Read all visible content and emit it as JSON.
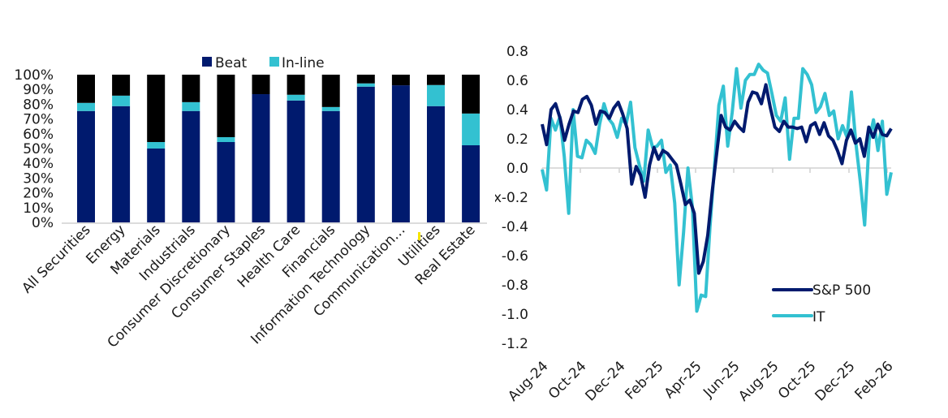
{
  "chart_data": [
    {
      "type": "bar",
      "stacked": true,
      "categories": [
        "All Securities",
        "Energy",
        "Materials",
        "Industrials",
        "Consumer Discretionary",
        "Consumer Staples",
        "Health Care",
        "Financials",
        "Information Technology",
        "Communication…",
        "Utilities",
        "Real Estate"
      ],
      "series": [
        {
          "name": "Beat",
          "color": "#001a6e",
          "values": [
            75.4,
            78.7,
            50.0,
            75.4,
            54.4,
            86.8,
            82.5,
            75.4,
            91.9,
            92.8,
            78.7,
            52.2
          ]
        },
        {
          "name": "In-line",
          "color": "#33c1d1",
          "values": [
            5.5,
            7.1,
            4.4,
            6.0,
            3.3,
            0.0,
            3.9,
            2.7,
            2.2,
            0.0,
            14.3,
            21.5
          ]
        },
        {
          "color": "#000000",
          "values": [
            19.1,
            14.2,
            45.6,
            18.6,
            42.3,
            13.2,
            13.6,
            21.9,
            5.9,
            7.2,
            7.0,
            26.3
          ]
        }
      ],
      "yticks": [
        "0%",
        "10%",
        "20%",
        "30%",
        "40%",
        "50%",
        "60%",
        "70%",
        "80%",
        "90%",
        "100%"
      ],
      "ylim": [
        0,
        100
      ],
      "legend": "top",
      "grid": false
    },
    {
      "type": "line",
      "ylabel": "x",
      "ylim": [
        -1.2,
        0.8
      ],
      "yticks": [
        "0.8",
        "0.6",
        "0.4",
        "0.2",
        "0.0",
        "-0.2",
        "-0.4",
        "-0.6",
        "-0.8",
        "-1.0",
        "-1.2"
      ],
      "xticks": [
        "Aug-24",
        "Oct-24",
        "Dec-24",
        "Feb-25",
        "Apr-25",
        "Jun-25",
        "Aug-25",
        "Oct-25",
        "Dec-25",
        "Feb-26"
      ],
      "legend": "bottom-right",
      "grid": false,
      "series": [
        {
          "name": "S&P 500",
          "color": "#001a6e",
          "values": [
            0.3,
            0.16,
            0.4,
            0.44,
            0.34,
            0.19,
            0.3,
            0.39,
            0.38,
            0.47,
            0.49,
            0.43,
            0.3,
            0.39,
            0.38,
            0.34,
            0.41,
            0.45,
            0.37,
            0.27,
            -0.11,
            0.01,
            -0.05,
            -0.2,
            0.02,
            0.14,
            0.06,
            0.12,
            0.1,
            0.06,
            0.02,
            -0.11,
            -0.25,
            -0.22,
            -0.31,
            -0.72,
            -0.64,
            -0.46,
            -0.16,
            0.1,
            0.36,
            0.28,
            0.26,
            0.32,
            0.28,
            0.25,
            0.45,
            0.52,
            0.51,
            0.44,
            0.57,
            0.41,
            0.28,
            0.25,
            0.32,
            0.28,
            0.28,
            0.27,
            0.28,
            0.18,
            0.29,
            0.31,
            0.23,
            0.31,
            0.22,
            0.19,
            0.12,
            0.03,
            0.19,
            0.26,
            0.17,
            0.2,
            0.08,
            0.28,
            0.21,
            0.3,
            0.23,
            0.22,
            0.27
          ]
        },
        {
          "name": "IT",
          "color": "#33c1d1",
          "values": [
            -0.01,
            -0.15,
            0.34,
            0.26,
            0.35,
            0.08,
            -0.31,
            0.4,
            0.08,
            0.07,
            0.19,
            0.16,
            0.1,
            0.3,
            0.44,
            0.34,
            0.3,
            0.21,
            0.34,
            0.3,
            0.45,
            0.14,
            0.02,
            -0.09,
            0.26,
            0.14,
            0.15,
            0.19,
            -0.03,
            0.02,
            -0.24,
            -0.8,
            -0.44,
            0.0,
            -0.27,
            -0.98,
            -0.87,
            -0.88,
            -0.4,
            0.01,
            0.43,
            0.56,
            0.15,
            0.38,
            0.68,
            0.41,
            0.6,
            0.64,
            0.64,
            0.71,
            0.67,
            0.65,
            0.51,
            0.36,
            0.32,
            0.48,
            0.06,
            0.34,
            0.34,
            0.68,
            0.64,
            0.57,
            0.38,
            0.42,
            0.51,
            0.36,
            0.39,
            0.2,
            0.29,
            0.21,
            0.52,
            0.17,
            -0.09,
            -0.39,
            0.19,
            0.33,
            0.12,
            0.32,
            -0.18,
            -0.03
          ]
        }
      ]
    }
  ]
}
